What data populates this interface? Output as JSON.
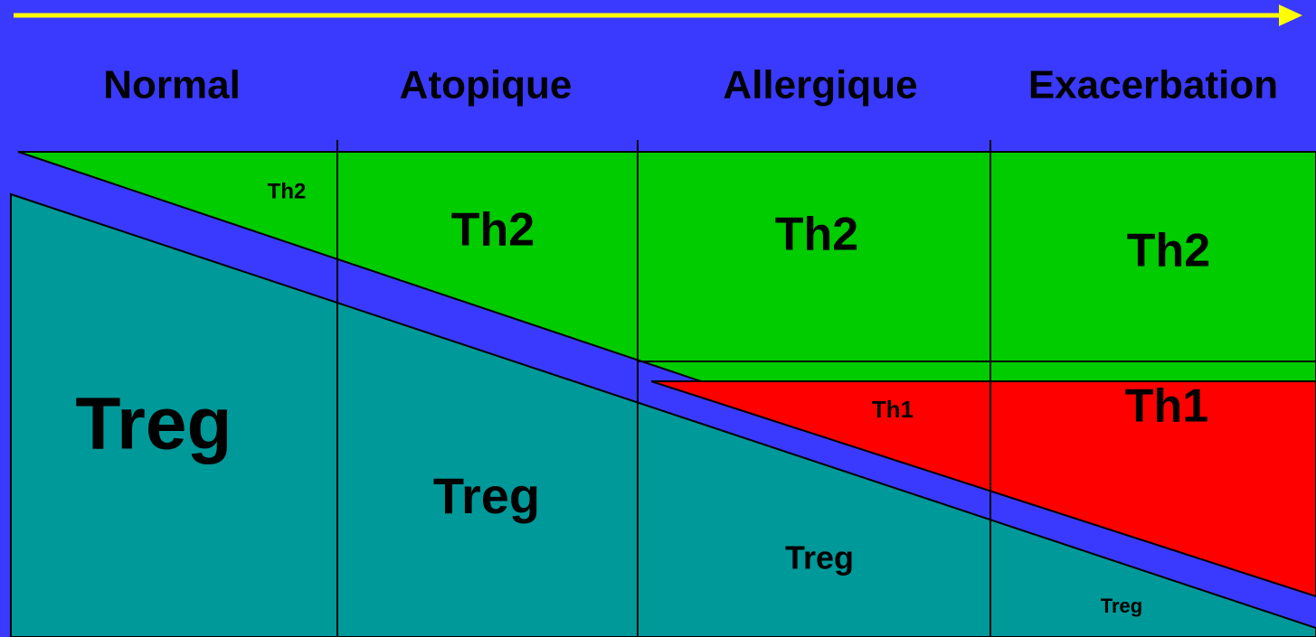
{
  "columns": [
    "Normal",
    "Atopique",
    "Allergique",
    "Exacerbation"
  ],
  "labels": {
    "th2": [
      "Th2",
      "Th2",
      "Th2",
      "Th2"
    ],
    "th1": [
      "Th1",
      "Th1"
    ],
    "treg": [
      "Treg",
      "Treg",
      "Treg",
      "Treg"
    ]
  }
}
